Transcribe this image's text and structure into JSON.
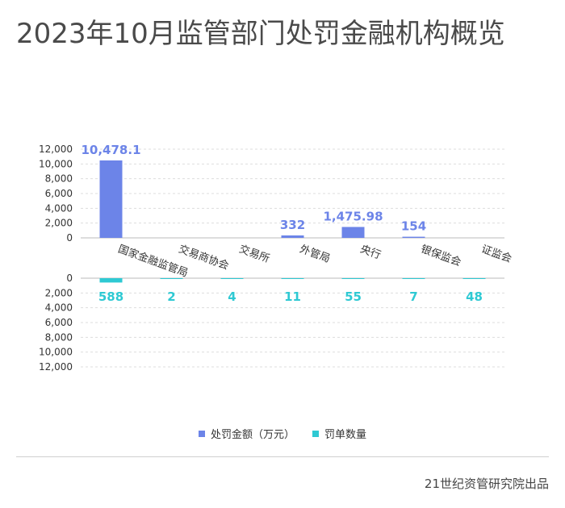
{
  "title": "2023年10月监管部门处罚金融机构概览",
  "footer": "21世纪资管研究院出品",
  "colors": {
    "amount": "#6c84e8",
    "count": "#2ec9d3"
  },
  "legend": [
    {
      "label": "处罚金额（万元）",
      "color": "#6c84e8"
    },
    {
      "label": "罚单数量",
      "color": "#2ec9d3"
    }
  ],
  "chart_data": {
    "type": "bar",
    "categories": [
      "国家金融监管局",
      "交易商协会",
      "交易所",
      "外管局",
      "央行",
      "银保监会",
      "证监会"
    ],
    "ylim": [
      0,
      12000
    ],
    "yticks": [
      "0",
      "2,000",
      "4,000",
      "6,000",
      "8,000",
      "10,000",
      "12,000"
    ],
    "grid": true,
    "legend_position": "bottom",
    "series": [
      {
        "name": "处罚金额（万元）",
        "values": [
          10478.1,
          0,
          0,
          332,
          1475.98,
          154,
          0
        ],
        "labels": [
          "10,478.1",
          "",
          "",
          "332",
          "1,475.98",
          "154",
          ""
        ]
      },
      {
        "name": "罚单数量",
        "values": [
          588,
          2,
          4,
          11,
          55,
          7,
          48
        ],
        "labels": [
          "588",
          "2",
          "4",
          "11",
          "55",
          "7",
          "48"
        ]
      }
    ]
  }
}
